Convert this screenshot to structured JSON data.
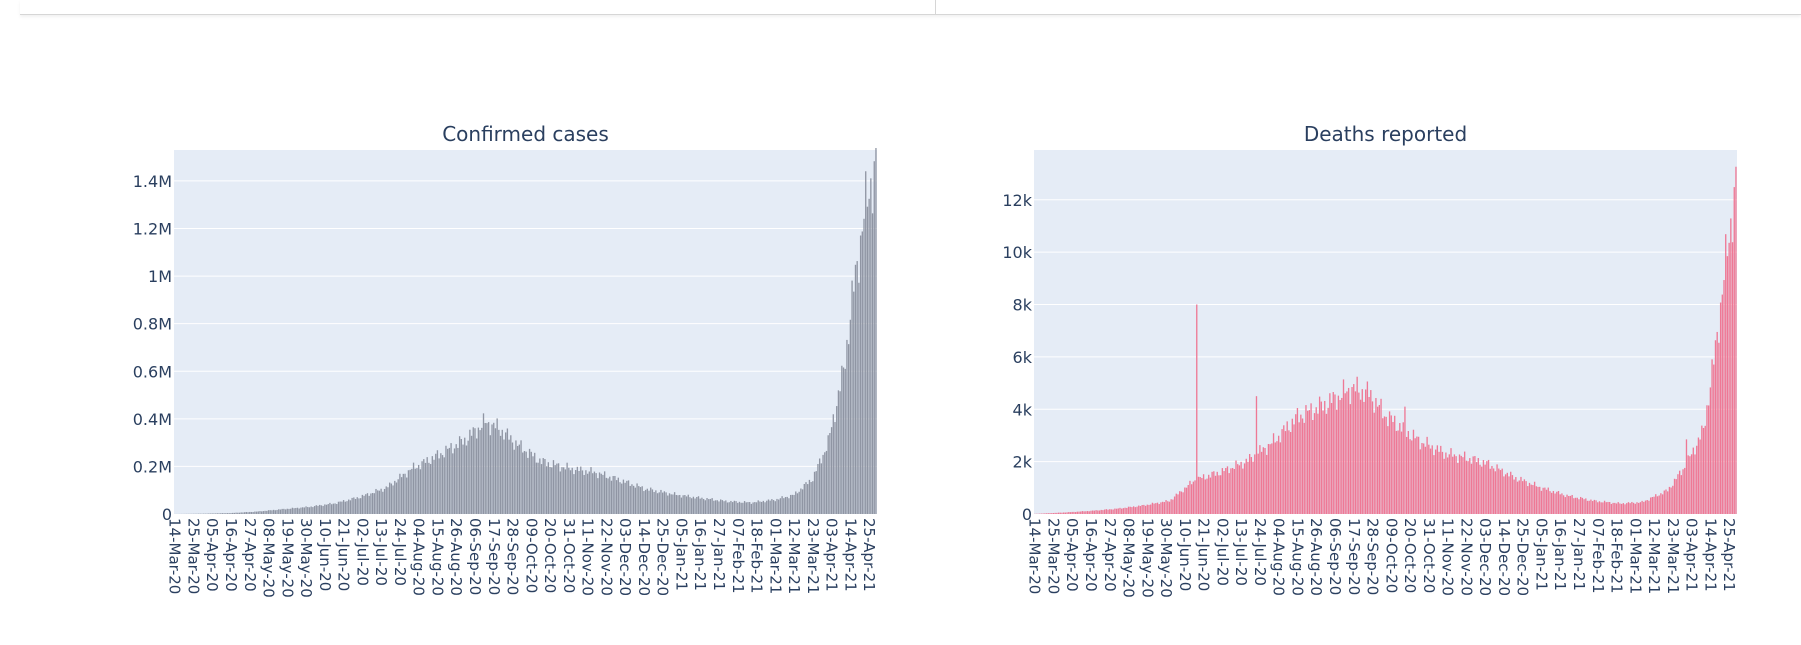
{
  "chart_data": [
    {
      "type": "bar",
      "title": "Confirmed cases",
      "xlabel": "",
      "ylabel": "",
      "color": "#8f95a3",
      "plot_bg": "#e5ecf6",
      "grid": true,
      "start_date": "2020-03-14",
      "end_date": "2021-04-29",
      "ylim": [
        0,
        1530000
      ],
      "yticks": [
        0,
        200000,
        400000,
        600000,
        800000,
        1000000,
        1200000,
        1400000
      ],
      "ytick_labels": [
        "0",
        "0.2M",
        "0.4M",
        "0.6M",
        "0.8M",
        "1M",
        "1.2M",
        "1.4M"
      ],
      "xtick_labels": [
        "14-Mar-20",
        "25-Mar-20",
        "05-Apr-20",
        "16-Apr-20",
        "27-Apr-20",
        "08-May-20",
        "19-May-20",
        "30-May-20",
        "10-Jun-20",
        "21-Jun-20",
        "02-Jul-20",
        "13-Jul-20",
        "24-Jul-20",
        "04-Aug-20",
        "15-Aug-20",
        "26-Aug-20",
        "06-Sep-20",
        "17-Sep-20",
        "28-Sep-20",
        "09-Oct-20",
        "20-Oct-20",
        "31-Oct-20",
        "11-Nov-20",
        "22-Nov-20",
        "03-Dec-20",
        "14-Dec-20",
        "25-Dec-20",
        "05-Jan-21",
        "16-Jan-21",
        "27-Jan-21",
        "07-Feb-21",
        "18-Feb-21",
        "01-Mar-21",
        "12-Mar-21",
        "23-Mar-21",
        "03-Apr-21",
        "14-Apr-21",
        "25-Apr-21"
      ],
      "series": [
        {
          "points": [
            [
              "2020-03-14",
              100
            ],
            [
              "2020-04-01",
              1500
            ],
            [
              "2020-04-16",
              4000
            ],
            [
              "2020-05-01",
              10000
            ],
            [
              "2020-05-16",
              20000
            ],
            [
              "2020-06-01",
              30000
            ],
            [
              "2020-06-16",
              45000
            ],
            [
              "2020-07-01",
              72000
            ],
            [
              "2020-07-16",
              110000
            ],
            [
              "2020-07-31",
              190000
            ],
            [
              "2020-08-15",
              245000
            ],
            [
              "2020-08-31",
              310000
            ],
            [
              "2020-09-12",
              385000
            ],
            [
              "2020-09-20",
              360000
            ],
            [
              "2020-10-01",
              290000
            ],
            [
              "2020-10-15",
              220000
            ],
            [
              "2020-11-01",
              190000
            ],
            [
              "2020-11-15",
              175000
            ],
            [
              "2020-12-01",
              140000
            ],
            [
              "2020-12-15",
              105000
            ],
            [
              "2021-01-01",
              82000
            ],
            [
              "2021-01-15",
              68000
            ],
            [
              "2021-02-01",
              53000
            ],
            [
              "2021-02-15",
              48000
            ],
            [
              "2021-03-01",
              60000
            ],
            [
              "2021-03-12",
              80000
            ],
            [
              "2021-03-23",
              150000
            ],
            [
              "2021-04-01",
              300000
            ],
            [
              "2021-04-10",
              600000
            ],
            [
              "2021-04-16",
              950000
            ],
            [
              "2021-04-22",
              1250000
            ],
            [
              "2021-04-26",
              1400000
            ],
            [
              "2021-04-29",
              1450000
            ]
          ]
        }
      ]
    },
    {
      "type": "bar",
      "title": "Deaths reported",
      "xlabel": "",
      "ylabel": "",
      "color": "#ee7895",
      "plot_bg": "#e5ecf6",
      "grid": true,
      "start_date": "2020-03-14",
      "end_date": "2021-04-29",
      "ylim": [
        0,
        13900
      ],
      "yticks": [
        0,
        2000,
        4000,
        6000,
        8000,
        10000,
        12000
      ],
      "ytick_labels": [
        "0",
        "2k",
        "4k",
        "6k",
        "8k",
        "10k",
        "12k"
      ],
      "xtick_labels": [
        "14-Mar-20",
        "25-Mar-20",
        "05-Apr-20",
        "16-Apr-20",
        "27-Apr-20",
        "08-May-20",
        "19-May-20",
        "30-May-20",
        "10-Jun-20",
        "21-Jun-20",
        "02-Jul-20",
        "13-Jul-20",
        "24-Jul-20",
        "04-Aug-20",
        "15-Aug-20",
        "26-Aug-20",
        "06-Sep-20",
        "17-Sep-20",
        "28-Sep-20",
        "09-Oct-20",
        "20-Oct-20",
        "31-Oct-20",
        "11-Nov-20",
        "22-Nov-20",
        "03-Dec-20",
        "14-Dec-20",
        "25-Dec-20",
        "05-Jan-21",
        "16-Jan-21",
        "27-Jan-21",
        "07-Feb-21",
        "18-Feb-21",
        "01-Mar-21",
        "12-Mar-21",
        "23-Mar-21",
        "03-Apr-21",
        "14-Apr-21",
        "25-Apr-21"
      ],
      "spikes": [
        [
          "2020-06-17",
          8000
        ],
        [
          "2020-07-22",
          4500
        ],
        [
          "2020-10-17",
          4100
        ],
        [
          "2021-03-31",
          2850
        ]
      ],
      "series": [
        {
          "points": [
            [
              "2020-03-14",
              5
            ],
            [
              "2020-04-01",
              60
            ],
            [
              "2020-04-16",
              120
            ],
            [
              "2020-05-01",
              200
            ],
            [
              "2020-05-16",
              320
            ],
            [
              "2020-06-01",
              500
            ],
            [
              "2020-06-16",
              1300
            ],
            [
              "2020-07-01",
              1600
            ],
            [
              "2020-07-16",
              2000
            ],
            [
              "2020-07-31",
              2700
            ],
            [
              "2020-08-15",
              3700
            ],
            [
              "2020-09-01",
              4200
            ],
            [
              "2020-09-16",
              4800
            ],
            [
              "2020-09-26",
              4600
            ],
            [
              "2020-10-05",
              3800
            ],
            [
              "2020-10-15",
              3300
            ],
            [
              "2020-10-25",
              2800
            ],
            [
              "2020-11-10",
              2300
            ],
            [
              "2020-11-25",
              2100
            ],
            [
              "2020-12-05",
              1900
            ],
            [
              "2020-12-20",
              1400
            ],
            [
              "2021-01-05",
              1000
            ],
            [
              "2021-01-20",
              700
            ],
            [
              "2021-02-05",
              500
            ],
            [
              "2021-02-20",
              400
            ],
            [
              "2021-03-05",
              450
            ],
            [
              "2021-03-20",
              900
            ],
            [
              "2021-03-31",
              1900
            ],
            [
              "2021-04-10",
              3200
            ],
            [
              "2021-04-16",
              5800
            ],
            [
              "2021-04-22",
              9000
            ],
            [
              "2021-04-26",
              11200
            ],
            [
              "2021-04-29",
              12500
            ]
          ]
        }
      ]
    }
  ]
}
